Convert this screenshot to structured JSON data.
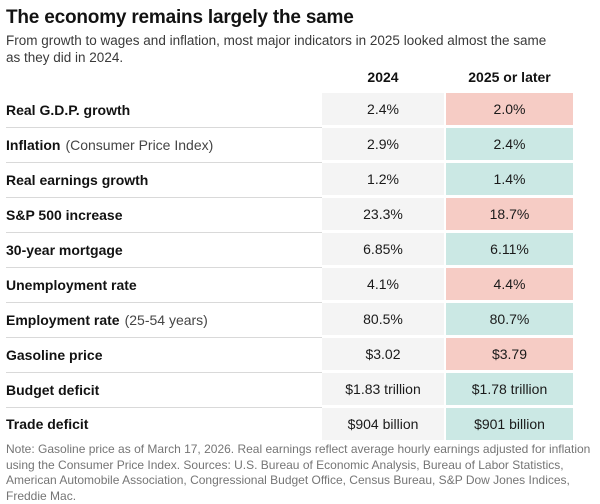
{
  "chart_data": {
    "type": "table",
    "title": "The economy remains largely the same",
    "subtitle": "From growth to wages and inflation, most major indicators in 2025 looked almost the same as they did in 2024.",
    "columns": [
      "2024",
      "2025 or later"
    ],
    "rows": [
      {
        "label": "Real G.D.P. growth",
        "label_note": "",
        "v2024": "2.4%",
        "v2025": "2.0%",
        "direction": "worse"
      },
      {
        "label": "Inflation",
        "label_note": "(Consumer Price Index)",
        "v2024": "2.9%",
        "v2025": "2.4%",
        "direction": "better"
      },
      {
        "label": "Real earnings growth",
        "label_note": "",
        "v2024": "1.2%",
        "v2025": "1.4%",
        "direction": "better"
      },
      {
        "label": "S&P 500 increase",
        "label_note": "",
        "v2024": "23.3%",
        "v2025": "18.7%",
        "direction": "worse"
      },
      {
        "label": "30-year mortgage",
        "label_note": "",
        "v2024": "6.85%",
        "v2025": "6.11%",
        "direction": "better"
      },
      {
        "label": "Unemployment rate",
        "label_note": "",
        "v2024": "4.1%",
        "v2025": "4.4%",
        "direction": "worse"
      },
      {
        "label": "Employment rate",
        "label_note": "(25-54 years)",
        "v2024": "80.5%",
        "v2025": "80.7%",
        "direction": "better"
      },
      {
        "label": "Gasoline price",
        "label_note": "",
        "v2024": "$3.02",
        "v2025": "$3.79",
        "direction": "worse"
      },
      {
        "label": "Budget deficit",
        "label_note": "",
        "v2024": "$1.83 trillion",
        "v2025": "$1.78 trillion",
        "direction": "better"
      },
      {
        "label": "Trade deficit",
        "label_note": "",
        "v2024": "$904 billion",
        "v2025": "$901 billion",
        "direction": "better"
      }
    ],
    "note": "Note: Gasoline price as of March 17, 2026. Real earnings reflect average hourly earnings adjusted for inflation using the Consumer Price Index. Sources: U.S. Bureau of Economic Analysis, Bureau of Labor Statistics, American Automobile Association, Congressional Budget Office, Census Bureau, S&P Dow Jones Indices, Freddie Mac.",
    "legend_position": "none",
    "grid": "row-dividers-left-column-only"
  },
  "colors": {
    "neutral": "#f4f4f4",
    "worse": "#f6ccc5",
    "better": "#cbe8e4",
    "divider": "#d9d9d9",
    "note_text": "#757575"
  }
}
